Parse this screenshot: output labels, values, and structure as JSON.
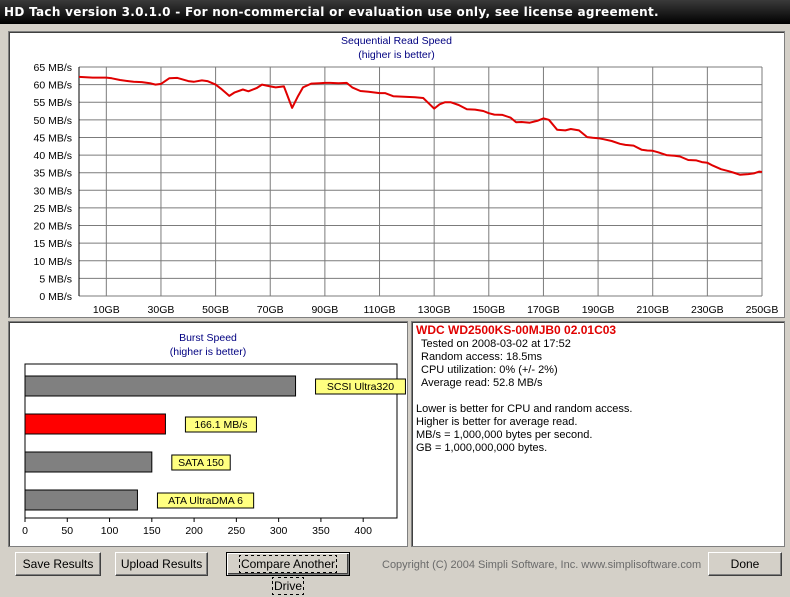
{
  "window": {
    "title": "HD Tach version 3.0.1.0  - For non-commercial or evaluation use only, see license agreement."
  },
  "colors": {
    "line": "#e00000",
    "bar_gray": "#808080",
    "bar_red": "#ff0000",
    "label_bg": "#ffff80",
    "grid": "#7b7b7b",
    "title_blue": "#000080"
  },
  "chart_data": [
    {
      "type": "line",
      "title": "Sequential Read Speed",
      "subtitle": "(higher is better)",
      "y_ticks": [
        "0 MB/s",
        "5 MB/s",
        "10 MB/s",
        "15 MB/s",
        "20 MB/s",
        "25 MB/s",
        "30 MB/s",
        "35 MB/s",
        "40 MB/s",
        "45 MB/s",
        "50 MB/s",
        "55 MB/s",
        "60 MB/s",
        "65 MB/s"
      ],
      "x_ticks": [
        "10GB",
        "30GB",
        "50GB",
        "70GB",
        "90GB",
        "110GB",
        "130GB",
        "150GB",
        "170GB",
        "190GB",
        "210GB",
        "230GB",
        "250GB"
      ],
      "xlim": [
        0,
        250
      ],
      "ylim": [
        0,
        65
      ],
      "grid": true,
      "series": [
        {
          "x": [
            0,
            5,
            10,
            12,
            15,
            18,
            20,
            23,
            26,
            28,
            30,
            33,
            36,
            40,
            42,
            45,
            47,
            50,
            52,
            55,
            57,
            60,
            62,
            65,
            67,
            70,
            72,
            75,
            76,
            78,
            80,
            82,
            85,
            88,
            90,
            92,
            95,
            98,
            100,
            103,
            106,
            110,
            112,
            115,
            118,
            120,
            123,
            126,
            128,
            130,
            132,
            134,
            136,
            139,
            142,
            145,
            148,
            150,
            152,
            155,
            158,
            160,
            162,
            165,
            168,
            170,
            172,
            175,
            178,
            180,
            183,
            186,
            188,
            190,
            192,
            195,
            198,
            200,
            203,
            206,
            208,
            210,
            212,
            215,
            218,
            220,
            223,
            226,
            228,
            230,
            232,
            235,
            238,
            240,
            242,
            245,
            247,
            249,
            250
          ],
          "y": [
            62.2,
            62.0,
            62.0,
            61.8,
            61.3,
            61.0,
            60.8,
            60.7,
            60.4,
            60.0,
            60.2,
            61.8,
            61.9,
            61.0,
            60.8,
            61.2,
            61.0,
            60.0,
            58.8,
            56.8,
            57.8,
            58.6,
            58.1,
            59.0,
            60.0,
            59.5,
            59.2,
            59.5,
            57.5,
            53.4,
            56.5,
            59.2,
            60.3,
            60.4,
            60.5,
            60.5,
            60.4,
            60.5,
            59.2,
            58.2,
            58.0,
            57.6,
            57.6,
            56.7,
            56.6,
            56.5,
            56.4,
            56.2,
            54.7,
            53.2,
            54.4,
            55.0,
            55.0,
            54.2,
            53.0,
            52.9,
            52.5,
            51.9,
            51.5,
            51.4,
            50.6,
            49.3,
            49.4,
            49.2,
            49.8,
            50.4,
            50.0,
            47.2,
            47.0,
            47.4,
            47.0,
            45.1,
            44.9,
            44.8,
            44.5,
            44.0,
            43.2,
            42.9,
            42.7,
            41.5,
            41.3,
            41.2,
            40.8,
            40.0,
            39.8,
            39.6,
            38.6,
            38.5,
            38.0,
            37.8,
            37.0,
            36.0,
            35.4,
            34.9,
            34.4,
            34.6,
            34.8,
            35.3,
            35.2
          ]
        }
      ]
    },
    {
      "type": "bar",
      "title": "Burst Speed",
      "subtitle": "(higher is better)",
      "orientation": "horizontal",
      "xlim": [
        0,
        440
      ],
      "x_ticks": [
        "0",
        "50",
        "100",
        "150",
        "200",
        "250",
        "300",
        "350",
        "400"
      ],
      "bars": [
        {
          "label": "SCSI Ultra320",
          "value": 320,
          "highlight": false
        },
        {
          "label": "166.1 MB/s",
          "value": 166.1,
          "highlight": true
        },
        {
          "label": "SATA 150",
          "value": 150,
          "highlight": false
        },
        {
          "label": "ATA UltraDMA 6",
          "value": 133,
          "highlight": false
        }
      ]
    }
  ],
  "info": {
    "drive_name": "WDC WD2500KS-00MJB0 02.01C03",
    "tested_on": "Tested on 2008-03-02 at 17:52",
    "random_access": "Random access: 18.5ms",
    "cpu_util": "CPU utilization: 0% (+/- 2%)",
    "avg_read": "Average read: 52.8 MB/s",
    "note1": "Lower is better for CPU and random access.",
    "note2": "Higher is better for average read.",
    "note3": "MB/s = 1,000,000 bytes per second.",
    "note4": "GB = 1,000,000,000 bytes."
  },
  "buttons": {
    "save_results": "Save Results",
    "upload_results": "Upload Results",
    "compare_another_drive": "Compare Another Drive",
    "done": "Done"
  },
  "footer": {
    "copyright": "Copyright (C) 2004 Simpli Software, Inc. www.simplisoftware.com"
  }
}
